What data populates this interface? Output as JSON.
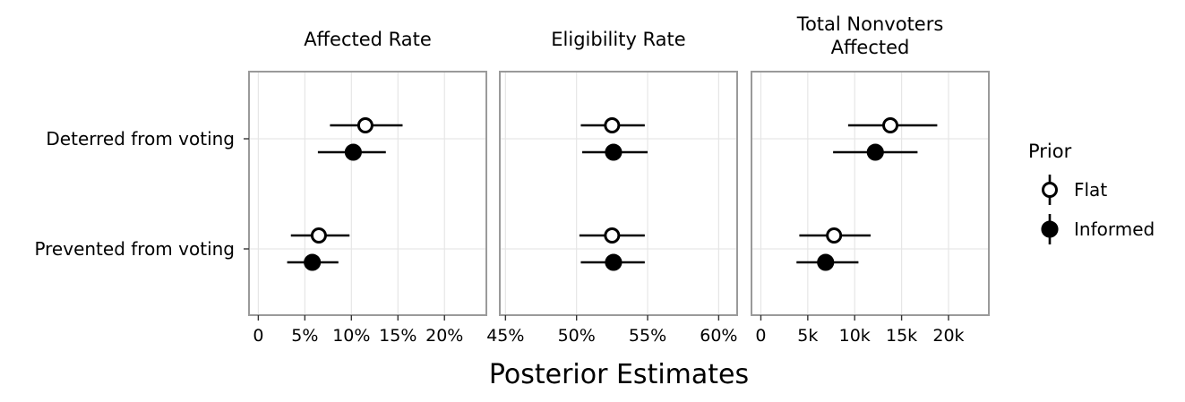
{
  "chart_data": {
    "type": "scatter",
    "subtype": "point-range (posterior estimate with interval)",
    "x_axis_title": "Posterior Estimates",
    "categories": [
      "Deterred from voting",
      "Prevented from voting"
    ],
    "legend": {
      "title": "Prior",
      "placement": "right",
      "entries": [
        {
          "name": "Flat",
          "marker": "open-circle"
        },
        {
          "name": "Informed",
          "marker": "filled-circle"
        }
      ]
    },
    "grid": true,
    "panels": [
      {
        "title": [
          "Affected Rate"
        ],
        "xlim": [
          -1,
          24.5
        ],
        "ticks": [
          0,
          5,
          10,
          15,
          20
        ],
        "tick_labels": [
          "0",
          "5%",
          "10%",
          "15%",
          "20%"
        ],
        "series": [
          {
            "name": "Flat",
            "points": [
              {
                "category": "Deterred from voting",
                "estimate": 11.5,
                "low": 7.7,
                "high": 15.5
              },
              {
                "category": "Prevented from voting",
                "estimate": 6.5,
                "low": 3.5,
                "high": 9.8
              }
            ]
          },
          {
            "name": "Informed",
            "points": [
              {
                "category": "Deterred from voting",
                "estimate": 10.2,
                "low": 6.4,
                "high": 13.7
              },
              {
                "category": "Prevented from voting",
                "estimate": 5.8,
                "low": 3.1,
                "high": 8.6
              }
            ]
          }
        ]
      },
      {
        "title": [
          "Eligibility Rate"
        ],
        "xlim": [
          44.6,
          61.3
        ],
        "ticks": [
          45,
          50,
          55,
          60
        ],
        "tick_labels": [
          "45%",
          "50%",
          "55%",
          "60%"
        ],
        "series": [
          {
            "name": "Flat",
            "points": [
              {
                "category": "Deterred from voting",
                "estimate": 52.5,
                "low": 50.3,
                "high": 54.8
              },
              {
                "category": "Prevented from voting",
                "estimate": 52.5,
                "low": 50.2,
                "high": 54.8
              }
            ]
          },
          {
            "name": "Informed",
            "points": [
              {
                "category": "Deterred from voting",
                "estimate": 52.6,
                "low": 50.4,
                "high": 55.0
              },
              {
                "category": "Prevented from voting",
                "estimate": 52.6,
                "low": 50.3,
                "high": 54.8
              }
            ]
          }
        ]
      },
      {
        "title": [
          "Total Nonvoters",
          "Affected"
        ],
        "xlim": [
          -1000,
          24300
        ],
        "ticks": [
          0,
          5000,
          10000,
          15000,
          20000
        ],
        "tick_labels": [
          "0",
          "5k",
          "10k",
          "15k",
          "20k"
        ],
        "series": [
          {
            "name": "Flat",
            "points": [
              {
                "category": "Deterred from voting",
                "estimate": 13800,
                "low": 9300,
                "high": 18800
              },
              {
                "category": "Prevented from voting",
                "estimate": 7800,
                "low": 4100,
                "high": 11700
              }
            ]
          },
          {
            "name": "Informed",
            "points": [
              {
                "category": "Deterred from voting",
                "estimate": 12200,
                "low": 7700,
                "high": 16700
              },
              {
                "category": "Prevented from voting",
                "estimate": 6900,
                "low": 3800,
                "high": 10400
              }
            ]
          }
        ]
      }
    ]
  }
}
